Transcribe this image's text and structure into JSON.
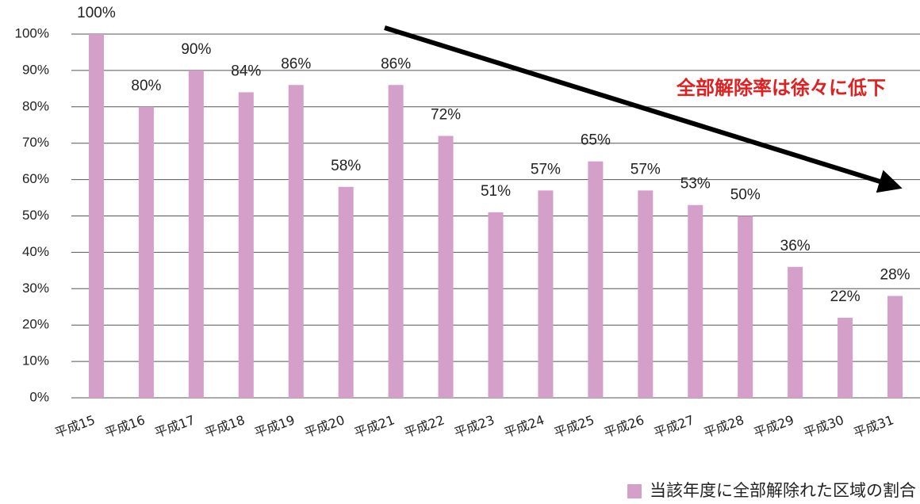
{
  "chart_data": {
    "type": "bar",
    "annotation": "全部解除率は徐々に低下",
    "categories": [
      "平成15",
      "平成16",
      "平成17",
      "平成18",
      "平成19",
      "平成20",
      "平成21",
      "平成22",
      "平成23",
      "平成24",
      "平成25",
      "平成26",
      "平成27",
      "平成28",
      "平成29",
      "平成30",
      "平成31"
    ],
    "series": [
      {
        "name": "当該年度に全部解除れた区域の割合",
        "color": "#d49fc8",
        "values": [
          100,
          80,
          90,
          84,
          86,
          58,
          86,
          72,
          51,
          57,
          65,
          57,
          53,
          50,
          36,
          22,
          28
        ],
        "value_labels": [
          "100%",
          "80%",
          "90%",
          "84%",
          "86%",
          "58%",
          "86%",
          "72%",
          "51%",
          "57%",
          "65%",
          "57%",
          "53%",
          "50%",
          "36%",
          "22%",
          "28%"
        ]
      }
    ],
    "ylim": [
      0,
      100
    ],
    "yticks": [
      {
        "value": 0,
        "label": "0%"
      },
      {
        "value": 10,
        "label": "10%"
      },
      {
        "value": 20,
        "label": "20%"
      },
      {
        "value": 30,
        "label": "30%"
      },
      {
        "value": 40,
        "label": "40%"
      },
      {
        "value": 50,
        "label": "50%"
      },
      {
        "value": 60,
        "label": "60%"
      },
      {
        "value": 70,
        "label": "70%"
      },
      {
        "value": 80,
        "label": "80%"
      },
      {
        "value": 90,
        "label": "90%"
      },
      {
        "value": 100,
        "label": "100%"
      }
    ],
    "grid": true,
    "legend": "bottom-right"
  }
}
